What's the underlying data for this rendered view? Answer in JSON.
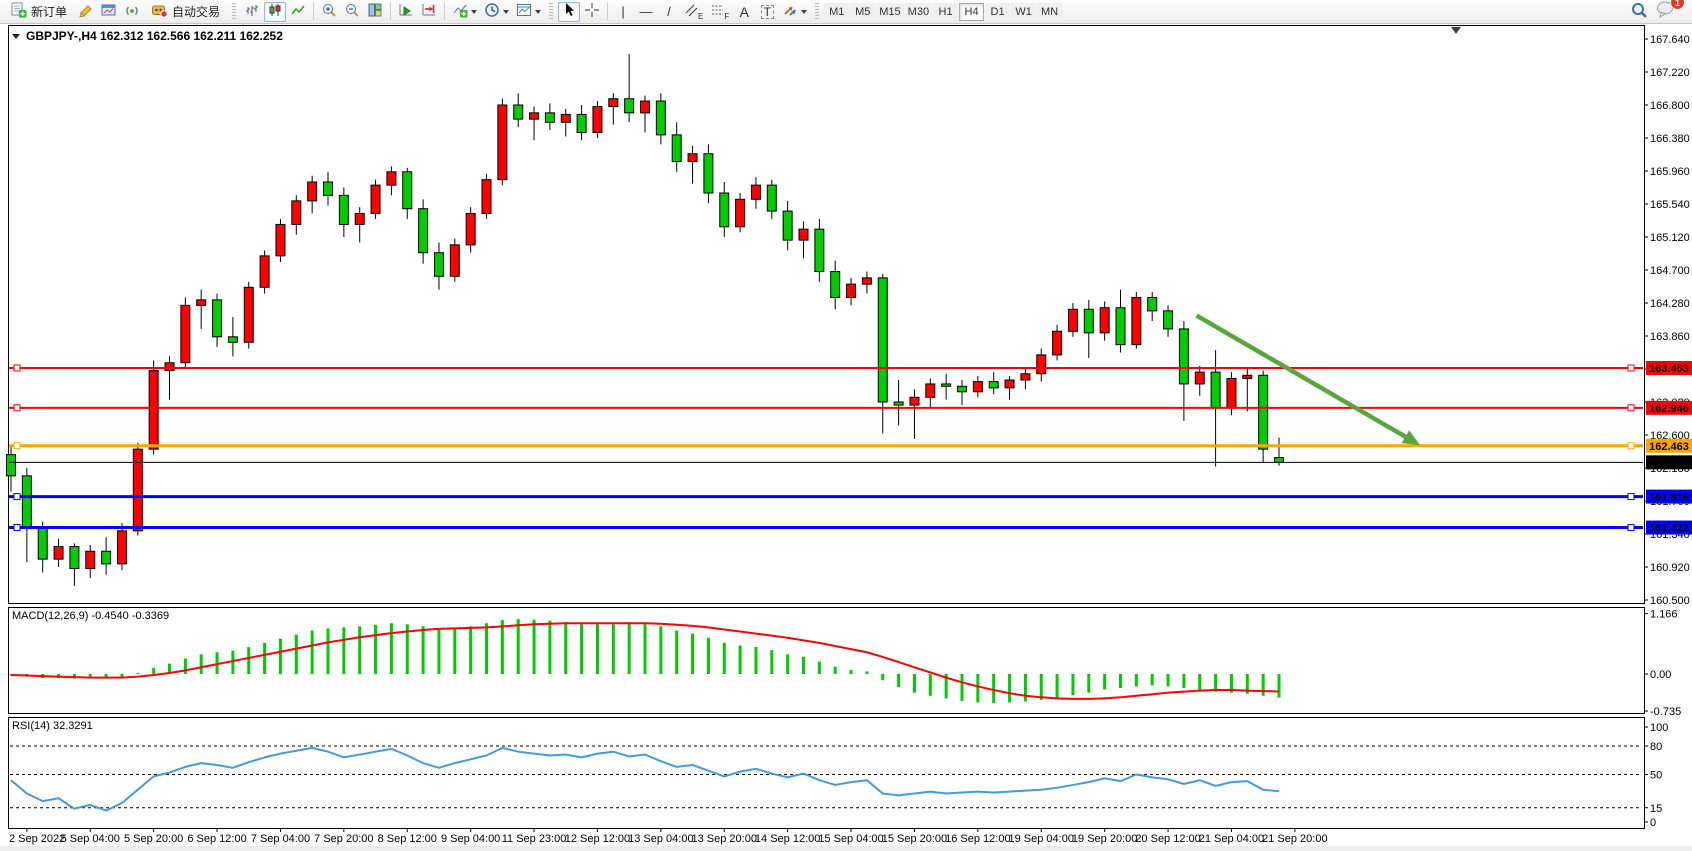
{
  "toolbar": {
    "new_order_label": "新订单",
    "autotrading_label": "自动交易",
    "timeframes": [
      "M1",
      "M5",
      "M15",
      "M30",
      "H1",
      "H4",
      "D1",
      "W1",
      "MN"
    ],
    "active_timeframe": "H4",
    "tool_tags": {
      "channel": "E",
      "fibonacci": "F",
      "text": "A",
      "label": "T"
    },
    "notification_badge": "1",
    "icons": [
      "new-order-icon",
      "crayon-icon",
      "profile-icon",
      "signal-icon",
      "autotrading-icon",
      "bar-chart-icon",
      "candlestick-icon",
      "line-chart-icon",
      "zoom-in-icon",
      "zoom-out-icon",
      "tile-windows-icon",
      "autoscroll-icon",
      "chart-shift-icon",
      "indicators-icon",
      "periods-icon",
      "templates-icon",
      "cursor-icon",
      "crosshair-icon",
      "vertical-line-icon",
      "horizontal-line-icon",
      "trendline-icon",
      "channel-icon",
      "fibonacci-icon",
      "text-icon",
      "text-label-icon",
      "arrows-icon",
      "search-icon",
      "notifications-icon"
    ]
  },
  "chart_data": {
    "type": "candlestick",
    "symbol": "GBPJPY-",
    "timeframe": "H4",
    "header_text": "GBPJPY-,H4  162.312 162.566 162.211 162.252",
    "current_bar": {
      "open": 162.312,
      "high": 162.566,
      "low": 162.211,
      "close": 162.252
    },
    "price_axis": {
      "max": 167.64,
      "min": 160.5,
      "step": 0.42
    },
    "colors": {
      "bull": "#ff0000",
      "bear": "#00cc00",
      "wick": "#000000",
      "background": "#ffffff",
      "macd_hist": "#00cc00",
      "macd_signal": "#ff0000",
      "rsi_line": "#429bdd",
      "arrow": "#5aa53c"
    },
    "hlines": [
      {
        "price": 163.453,
        "label": "163.453",
        "color": "#ff0000",
        "width": 2,
        "handles": true
      },
      {
        "price": 162.946,
        "label": "162.946",
        "color": "#ff0000",
        "width": 2,
        "handles": true
      },
      {
        "price": 162.463,
        "label": "162.463",
        "color": "#ffa500",
        "width": 3,
        "handles": true
      },
      {
        "price": 162.252,
        "label": "162.252",
        "color": "#000000",
        "width": 1,
        "handles": false
      },
      {
        "price": 161.816,
        "label": "161.816",
        "color": "#0000ff",
        "width": 3,
        "handles": true
      },
      {
        "price": 161.422,
        "label": "161.422",
        "color": "#0000ff",
        "width": 3,
        "handles": true
      }
    ],
    "trend_arrow": {
      "from_bar": 74.8,
      "from_price": 164.12,
      "to_bar": 88.9,
      "to_price": 162.47
    },
    "time_labels": [
      "2 Sep 2022",
      "5 Sep 04:00",
      "5 Sep 20:00",
      "6 Sep 12:00",
      "7 Sep 04:00",
      "7 Sep 20:00",
      "8 Sep 12:00",
      "9 Sep 04:00",
      "11 Sep 23:00",
      "12 Sep 12:00",
      "13 Sep 04:00",
      "13 Sep 20:00",
      "14 Sep 12:00",
      "15 Sep 04:00",
      "15 Sep 20:00",
      "16 Sep 12:00",
      "19 Sep 04:00",
      "19 Sep 20:00",
      "20 Sep 12:00",
      "21 Sep 04:00",
      "21 Sep 20:00"
    ],
    "candles": [
      [
        162.35,
        162.45,
        161.88,
        162.08
      ],
      [
        162.08,
        162.18,
        160.98,
        161.42
      ],
      [
        161.42,
        161.5,
        160.85,
        161.02
      ],
      [
        161.02,
        161.28,
        160.92,
        161.18
      ],
      [
        161.18,
        161.22,
        160.68,
        160.9
      ],
      [
        160.9,
        161.2,
        160.78,
        161.12
      ],
      [
        161.12,
        161.3,
        160.82,
        160.96
      ],
      [
        160.96,
        161.48,
        160.88,
        161.38
      ],
      [
        161.38,
        162.5,
        161.32,
        162.42
      ],
      [
        162.42,
        163.55,
        162.35,
        163.42
      ],
      [
        163.42,
        163.6,
        163.05,
        163.52
      ],
      [
        163.52,
        164.35,
        163.45,
        164.25
      ],
      [
        164.25,
        164.45,
        163.95,
        164.32
      ],
      [
        164.32,
        164.4,
        163.72,
        163.85
      ],
      [
        163.85,
        164.1,
        163.6,
        163.78
      ],
      [
        163.78,
        164.55,
        163.7,
        164.48
      ],
      [
        164.48,
        164.95,
        164.4,
        164.88
      ],
      [
        164.88,
        165.35,
        164.8,
        165.28
      ],
      [
        165.28,
        165.65,
        165.15,
        165.58
      ],
      [
        165.58,
        165.9,
        165.42,
        165.82
      ],
      [
        165.82,
        165.95,
        165.52,
        165.65
      ],
      [
        165.65,
        165.75,
        165.12,
        165.28
      ],
      [
        165.28,
        165.5,
        165.05,
        165.42
      ],
      [
        165.42,
        165.85,
        165.35,
        165.78
      ],
      [
        165.78,
        166.02,
        165.65,
        165.95
      ],
      [
        165.95,
        166.0,
        165.35,
        165.48
      ],
      [
        165.48,
        165.6,
        164.78,
        164.92
      ],
      [
        164.92,
        165.05,
        164.45,
        164.62
      ],
      [
        164.62,
        165.1,
        164.55,
        165.02
      ],
      [
        165.02,
        165.5,
        164.92,
        165.42
      ],
      [
        165.42,
        165.92,
        165.35,
        165.85
      ],
      [
        165.85,
        166.88,
        165.78,
        166.8
      ],
      [
        166.8,
        166.95,
        166.52,
        166.62
      ],
      [
        166.62,
        166.78,
        166.35,
        166.7
      ],
      [
        166.7,
        166.82,
        166.48,
        166.58
      ],
      [
        166.58,
        166.75,
        166.4,
        166.68
      ],
      [
        166.68,
        166.8,
        166.35,
        166.45
      ],
      [
        166.45,
        166.85,
        166.38,
        166.78
      ],
      [
        166.78,
        166.95,
        166.55,
        166.88
      ],
      [
        166.88,
        167.45,
        166.58,
        166.7
      ],
      [
        166.7,
        166.92,
        166.45,
        166.85
      ],
      [
        166.85,
        166.95,
        166.3,
        166.42
      ],
      [
        166.42,
        166.58,
        165.95,
        166.08
      ],
      [
        166.08,
        166.28,
        165.8,
        166.18
      ],
      [
        166.18,
        166.3,
        165.55,
        165.68
      ],
      [
        165.68,
        165.82,
        165.12,
        165.25
      ],
      [
        165.25,
        165.68,
        165.18,
        165.6
      ],
      [
        165.6,
        165.88,
        165.48,
        165.78
      ],
      [
        165.78,
        165.85,
        165.35,
        165.45
      ],
      [
        165.45,
        165.58,
        164.95,
        165.08
      ],
      [
        165.08,
        165.32,
        164.85,
        165.22
      ],
      [
        165.22,
        165.35,
        164.55,
        164.68
      ],
      [
        164.68,
        164.82,
        164.2,
        164.35
      ],
      [
        164.35,
        164.6,
        164.25,
        164.52
      ],
      [
        164.52,
        164.68,
        164.4,
        164.6
      ],
      [
        164.6,
        164.65,
        162.62,
        163.02
      ],
      [
        163.02,
        163.3,
        162.72,
        162.98
      ],
      [
        162.98,
        163.18,
        162.55,
        163.08
      ],
      [
        163.08,
        163.32,
        162.95,
        163.25
      ],
      [
        163.25,
        163.38,
        163.05,
        163.22
      ],
      [
        163.22,
        163.3,
        162.98,
        163.15
      ],
      [
        163.15,
        163.35,
        163.08,
        163.28
      ],
      [
        163.28,
        163.4,
        163.12,
        163.2
      ],
      [
        163.2,
        163.35,
        163.05,
        163.3
      ],
      [
        163.3,
        163.45,
        163.18,
        163.38
      ],
      [
        163.38,
        163.7,
        163.28,
        163.62
      ],
      [
        163.62,
        164.0,
        163.55,
        163.92
      ],
      [
        163.92,
        164.28,
        163.85,
        164.2
      ],
      [
        164.2,
        164.32,
        163.58,
        163.9
      ],
      [
        163.9,
        164.3,
        163.8,
        164.22
      ],
      [
        164.22,
        164.45,
        163.65,
        163.75
      ],
      [
        163.75,
        164.42,
        163.7,
        164.35
      ],
      [
        164.35,
        164.42,
        164.05,
        164.18
      ],
      [
        164.18,
        164.25,
        163.85,
        163.95
      ],
      [
        163.95,
        164.05,
        162.78,
        163.25
      ],
      [
        163.25,
        163.48,
        163.1,
        163.4
      ],
      [
        163.4,
        163.68,
        162.2,
        162.95
      ],
      [
        162.95,
        163.4,
        162.85,
        163.32
      ],
      [
        163.32,
        163.45,
        162.9,
        163.36
      ],
      [
        163.36,
        163.42,
        162.25,
        162.42
      ],
      [
        162.312,
        162.566,
        162.211,
        162.252
      ]
    ],
    "macd": {
      "label": "MACD(12,26,9)",
      "value": "-0.4540",
      "signal_value": "-0.3369",
      "display": "MACD(12,26,9) -0.4540 -0.3369",
      "axis_ticks": [
        {
          "label": "1.166",
          "value": 1.166
        },
        {
          "label": "0.00",
          "value": 0
        },
        {
          "label": "-0.735",
          "value": -0.735
        }
      ],
      "histogram": [
        -0.02,
        -0.05,
        -0.08,
        -0.08,
        -0.09,
        -0.07,
        -0.08,
        -0.05,
        0.02,
        0.12,
        0.2,
        0.3,
        0.38,
        0.42,
        0.45,
        0.52,
        0.6,
        0.68,
        0.76,
        0.84,
        0.88,
        0.9,
        0.92,
        0.95,
        0.98,
        0.96,
        0.92,
        0.88,
        0.88,
        0.92,
        0.98,
        1.04,
        1.06,
        1.05,
        1.03,
        1.0,
        0.98,
        0.98,
        0.99,
        1.0,
        0.98,
        0.92,
        0.84,
        0.78,
        0.7,
        0.6,
        0.55,
        0.52,
        0.46,
        0.38,
        0.33,
        0.24,
        0.14,
        0.08,
        0.05,
        -0.12,
        -0.25,
        -0.36,
        -0.42,
        -0.47,
        -0.52,
        -0.55,
        -0.56,
        -0.55,
        -0.53,
        -0.5,
        -0.46,
        -0.41,
        -0.36,
        -0.3,
        -0.27,
        -0.24,
        -0.22,
        -0.24,
        -0.27,
        -0.3,
        -0.34,
        -0.36,
        -0.38,
        -0.42,
        -0.454
      ],
      "signal": [
        -0.02,
        -0.03,
        -0.04,
        -0.05,
        -0.06,
        -0.07,
        -0.07,
        -0.07,
        -0.05,
        -0.02,
        0.02,
        0.07,
        0.13,
        0.19,
        0.25,
        0.31,
        0.37,
        0.43,
        0.49,
        0.55,
        0.61,
        0.66,
        0.71,
        0.75,
        0.79,
        0.82,
        0.85,
        0.87,
        0.88,
        0.89,
        0.9,
        0.92,
        0.94,
        0.96,
        0.97,
        0.98,
        0.98,
        0.98,
        0.98,
        0.98,
        0.98,
        0.97,
        0.95,
        0.93,
        0.9,
        0.86,
        0.82,
        0.78,
        0.74,
        0.7,
        0.65,
        0.6,
        0.54,
        0.48,
        0.42,
        0.33,
        0.23,
        0.13,
        0.03,
        -0.07,
        -0.16,
        -0.24,
        -0.31,
        -0.37,
        -0.42,
        -0.45,
        -0.47,
        -0.48,
        -0.48,
        -0.47,
        -0.45,
        -0.42,
        -0.39,
        -0.36,
        -0.34,
        -0.32,
        -0.31,
        -0.31,
        -0.32,
        -0.33,
        -0.3369
      ]
    },
    "rsi": {
      "label": "RSI(14)",
      "value": "32.3291",
      "display": "RSI(14) 32.3291",
      "levels": [
        80,
        50,
        15
      ],
      "axis_ticks": [
        {
          "label": "100",
          "value": 100
        },
        {
          "label": "80",
          "value": 80
        },
        {
          "label": "50",
          "value": 50
        },
        {
          "label": "15",
          "value": 15
        },
        {
          "label": "0",
          "value": 0
        }
      ],
      "values": [
        44,
        30,
        22,
        25,
        14,
        18,
        12,
        20,
        34,
        48,
        52,
        58,
        62,
        60,
        57,
        63,
        68,
        72,
        75,
        78,
        74,
        68,
        71,
        74,
        77,
        70,
        62,
        57,
        62,
        66,
        70,
        78,
        74,
        72,
        70,
        71,
        68,
        72,
        74,
        69,
        71,
        64,
        58,
        60,
        54,
        48,
        53,
        56,
        51,
        47,
        51,
        44,
        39,
        42,
        44,
        30,
        28,
        30,
        32,
        30,
        31,
        32,
        31,
        32,
        33,
        34,
        36,
        39,
        42,
        46,
        43,
        50,
        47,
        45,
        40,
        44,
        38,
        42,
        43,
        34,
        32.33
      ]
    }
  }
}
